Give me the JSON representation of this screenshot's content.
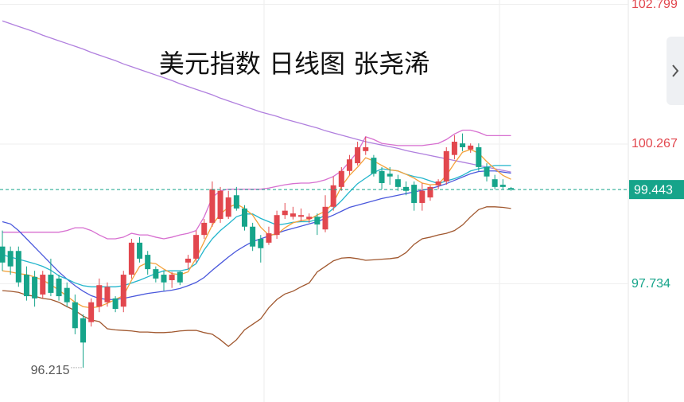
{
  "chart_data": {
    "type": "candlestick",
    "title": "美元指数 日线图 张尧浠",
    "categories": [
      null,
      null,
      null,
      null,
      null,
      null,
      null,
      null,
      null,
      null,
      null,
      null,
      null,
      null,
      null,
      null,
      null,
      null,
      null,
      null,
      null,
      null,
      null,
      null,
      null,
      null,
      null,
      null,
      null,
      null,
      null,
      null,
      null,
      null,
      null,
      null,
      null,
      null,
      null,
      null,
      null,
      null,
      null,
      null,
      null,
      null,
      null,
      null,
      null,
      null,
      null,
      null,
      null,
      null,
      null,
      null,
      null,
      null,
      null,
      null,
      null,
      null,
      null,
      null
    ],
    "open": [
      98.41,
      98.33,
      98.33,
      97.9,
      97.86,
      97.54,
      97.9,
      97.83,
      97.66,
      97.4,
      97.11,
      97.04,
      97.32,
      97.4,
      97.47,
      97.32,
      97.9,
      98.48,
      98.26,
      98.0,
      97.9,
      97.8,
      97.95,
      98.12,
      98.19,
      98.62,
      98.84,
      98.91,
      98.95,
      99.34,
      99.1,
      98.77,
      98.55,
      98.48,
      98.62,
      98.98,
      98.95,
      98.95,
      98.91,
      98.95,
      98.72,
      99.13,
      99.49,
      99.78,
      99.92,
      100.14,
      100.02,
      99.78,
      99.73,
      99.63,
      99.49,
      99.53,
      99.2,
      99.3,
      99.52,
      99.59,
      100.07,
      100.28,
      100.17,
      100.21,
      99.85,
      99.63,
      99.53,
      99.47
    ],
    "high": [
      98.7,
      98.41,
      98.41,
      98.05,
      97.97,
      97.97,
      98.19,
      97.9,
      97.76,
      97.54,
      97.18,
      97.47,
      97.83,
      97.76,
      97.51,
      97.97,
      98.55,
      98.58,
      98.33,
      98.05,
      97.97,
      97.95,
      97.97,
      98.26,
      98.7,
      98.91,
      99.59,
      99.49,
      99.42,
      99.49,
      99.16,
      98.84,
      98.62,
      98.77,
      99.06,
      99.2,
      99.13,
      99.1,
      99.01,
      99.01,
      99.34,
      99.68,
      99.85,
      100.07,
      100.31,
      100.4,
      100.07,
      99.85,
      99.85,
      99.71,
      99.59,
      99.59,
      99.56,
      99.52,
      99.63,
      100.21,
      100.43,
      100.46,
      100.28,
      100.28,
      99.92,
      99.71,
      99.63,
      99.49
    ],
    "low": [
      97.97,
      97.9,
      97.68,
      97.43,
      97.32,
      97.47,
      97.51,
      97.43,
      97.32,
      96.82,
      96.215,
      96.96,
      97.22,
      97.32,
      97.22,
      97.22,
      97.83,
      98.12,
      97.9,
      97.76,
      97.61,
      97.66,
      97.71,
      98.0,
      98.12,
      98.55,
      98.77,
      98.84,
      98.91,
      99.06,
      98.7,
      98.33,
      98.12,
      98.44,
      98.55,
      98.91,
      98.9,
      98.87,
      98.84,
      98.62,
      98.67,
      99.06,
      99.42,
      99.71,
      99.88,
      100.07,
      99.68,
      99.45,
      99.53,
      99.42,
      99.34,
      99.06,
      99.06,
      99.24,
      99.45,
      99.53,
      99.99,
      100.14,
      100.11,
      99.78,
      99.59,
      99.45,
      99.45,
      99.42
    ],
    "close": [
      98.12,
      98.05,
      97.76,
      97.51,
      97.47,
      97.9,
      97.57,
      97.51,
      97.4,
      96.93,
      96.67,
      97.4,
      97.71,
      97.68,
      97.28,
      97.9,
      98.48,
      98.19,
      98.0,
      97.83,
      97.76,
      97.9,
      97.76,
      98.19,
      98.62,
      98.84,
      99.45,
      99.42,
      99.3,
      99.1,
      98.77,
      98.41,
      98.38,
      98.65,
      98.98,
      99.06,
      99.01,
      98.98,
      98.95,
      98.81,
      99.13,
      99.52,
      99.78,
      99.99,
      100.21,
      100.21,
      99.73,
      99.56,
      99.68,
      99.49,
      99.42,
      99.2,
      99.42,
      99.49,
      99.59,
      100.14,
      100.31,
      100.21,
      100.24,
      99.85,
      99.68,
      99.49,
      99.49,
      99.443
    ],
    "up_color": "#e2474e",
    "down_color": "#16a48a",
    "lines": [
      {
        "color": "#b07fde",
        "values": [
          102.5,
          102.45,
          102.4,
          102.35,
          102.3,
          102.24,
          102.19,
          102.14,
          102.09,
          102.04,
          101.99,
          101.93,
          101.88,
          101.83,
          101.78,
          101.72,
          101.67,
          101.62,
          101.57,
          101.52,
          101.47,
          101.42,
          101.36,
          101.31,
          101.26,
          101.21,
          101.16,
          101.1,
          101.05,
          101.0,
          100.95,
          100.9,
          100.85,
          100.81,
          100.77,
          100.72,
          100.68,
          100.64,
          100.6,
          100.56,
          100.51,
          100.47,
          100.43,
          100.39,
          100.35,
          100.31,
          100.28,
          100.25,
          100.22,
          100.19,
          100.15,
          100.12,
          100.09,
          100.06,
          100.03,
          100.0,
          99.97,
          99.94,
          99.91,
          99.88,
          99.85,
          99.82,
          99.79,
          99.76
        ]
      },
      {
        "color": "#d76fd0",
        "values": [
          98.67,
          98.67,
          98.67,
          98.67,
          98.67,
          98.67,
          98.67,
          98.67,
          98.7,
          98.75,
          98.75,
          98.7,
          98.62,
          98.55,
          98.55,
          98.58,
          98.65,
          98.62,
          98.62,
          98.58,
          98.55,
          98.58,
          98.62,
          98.65,
          98.7,
          98.95,
          99.3,
          99.42,
          99.45,
          99.45,
          99.45,
          99.45,
          99.45,
          99.47,
          99.5,
          99.53,
          99.55,
          99.56,
          99.56,
          99.58,
          99.62,
          99.68,
          99.78,
          99.95,
          100.13,
          100.4,
          100.35,
          100.28,
          100.26,
          100.24,
          100.24,
          100.24,
          100.24,
          100.26,
          100.28,
          100.35,
          100.45,
          100.52,
          100.52,
          100.48,
          100.42,
          100.42,
          100.42,
          100.42
        ]
      },
      {
        "color": "#a0572e",
        "values": [
          97.61,
          97.6,
          97.58,
          97.53,
          97.51,
          97.47,
          97.45,
          97.4,
          97.32,
          97.25,
          97.15,
          97.08,
          97.05,
          96.92,
          96.9,
          96.89,
          96.88,
          96.86,
          96.86,
          96.85,
          96.85,
          96.86,
          96.88,
          96.89,
          96.89,
          96.85,
          96.82,
          96.72,
          96.6,
          96.72,
          96.9,
          97.0,
          97.1,
          97.3,
          97.45,
          97.55,
          97.6,
          97.68,
          97.75,
          97.95,
          98.05,
          98.15,
          98.2,
          98.21,
          98.19,
          98.16,
          98.17,
          98.18,
          98.19,
          98.21,
          98.3,
          98.45,
          98.55,
          98.58,
          98.62,
          98.65,
          98.7,
          98.8,
          98.95,
          99.08,
          99.13,
          99.13,
          99.12,
          99.1
        ]
      },
      {
        "color": "#4a58dc",
        "values": [
          98.86,
          98.82,
          98.7,
          98.55,
          98.4,
          98.25,
          98.1,
          97.95,
          97.82,
          97.7,
          97.6,
          97.52,
          97.47,
          97.45,
          97.45,
          97.47,
          97.5,
          97.53,
          97.56,
          97.58,
          97.6,
          97.62,
          97.65,
          97.7,
          97.76,
          97.85,
          97.98,
          98.1,
          98.22,
          98.33,
          98.42,
          98.5,
          98.55,
          98.6,
          98.65,
          98.7,
          98.74,
          98.78,
          98.82,
          98.86,
          98.92,
          98.98,
          99.05,
          99.12,
          99.16,
          99.2,
          99.24,
          99.28,
          99.31,
          99.34,
          99.37,
          99.4,
          99.43,
          99.46,
          99.5,
          99.55,
          99.61,
          99.67,
          99.73,
          99.77,
          99.78,
          99.78,
          99.76,
          99.74
        ]
      },
      {
        "color": "#22b5cc",
        "values": [
          98.26,
          98.22,
          98.18,
          98.14,
          98.1,
          98.05,
          97.98,
          97.88,
          97.82,
          97.75,
          97.7,
          97.68,
          97.68,
          97.68,
          97.68,
          97.7,
          97.75,
          97.8,
          97.86,
          97.92,
          97.97,
          97.97,
          97.97,
          98.0,
          98.1,
          98.35,
          98.55,
          98.7,
          98.82,
          98.95,
          99.0,
          99.0,
          98.92,
          98.86,
          98.8,
          98.82,
          98.85,
          98.86,
          98.86,
          98.9,
          98.98,
          99.1,
          99.24,
          99.4,
          99.55,
          99.65,
          99.75,
          99.82,
          99.8,
          99.78,
          99.72,
          99.68,
          99.65,
          99.6,
          99.55,
          99.6,
          99.64,
          99.7,
          99.78,
          99.82,
          99.85,
          99.88,
          99.88,
          99.88
        ]
      },
      {
        "color": "#f4a13a",
        "values": [
          97.97,
          97.95,
          97.92,
          97.9,
          97.86,
          97.8,
          97.72,
          97.62,
          97.51,
          97.4,
          97.32,
          97.3,
          97.32,
          97.38,
          97.45,
          97.52,
          97.8,
          98.05,
          98.12,
          98.1,
          98.0,
          97.92,
          97.9,
          97.95,
          98.2,
          98.5,
          98.8,
          99.0,
          99.12,
          99.18,
          99.1,
          98.98,
          98.76,
          98.62,
          98.63,
          98.75,
          98.84,
          98.88,
          98.9,
          98.98,
          99.05,
          99.2,
          99.5,
          99.7,
          99.85,
          100.02,
          99.96,
          99.88,
          99.8,
          99.78,
          99.72,
          99.65,
          99.56,
          99.53,
          99.54,
          99.7,
          99.92,
          100.12,
          100.17,
          100.1,
          99.95,
          99.82,
          99.7,
          99.63
        ]
      }
    ],
    "ylim": [
      95.592,
      102.879
    ],
    "yticks": [
      102.799,
      100.267,
      97.734
    ],
    "last_price": 99.443,
    "min_label": 96.215,
    "grid": true
  }
}
